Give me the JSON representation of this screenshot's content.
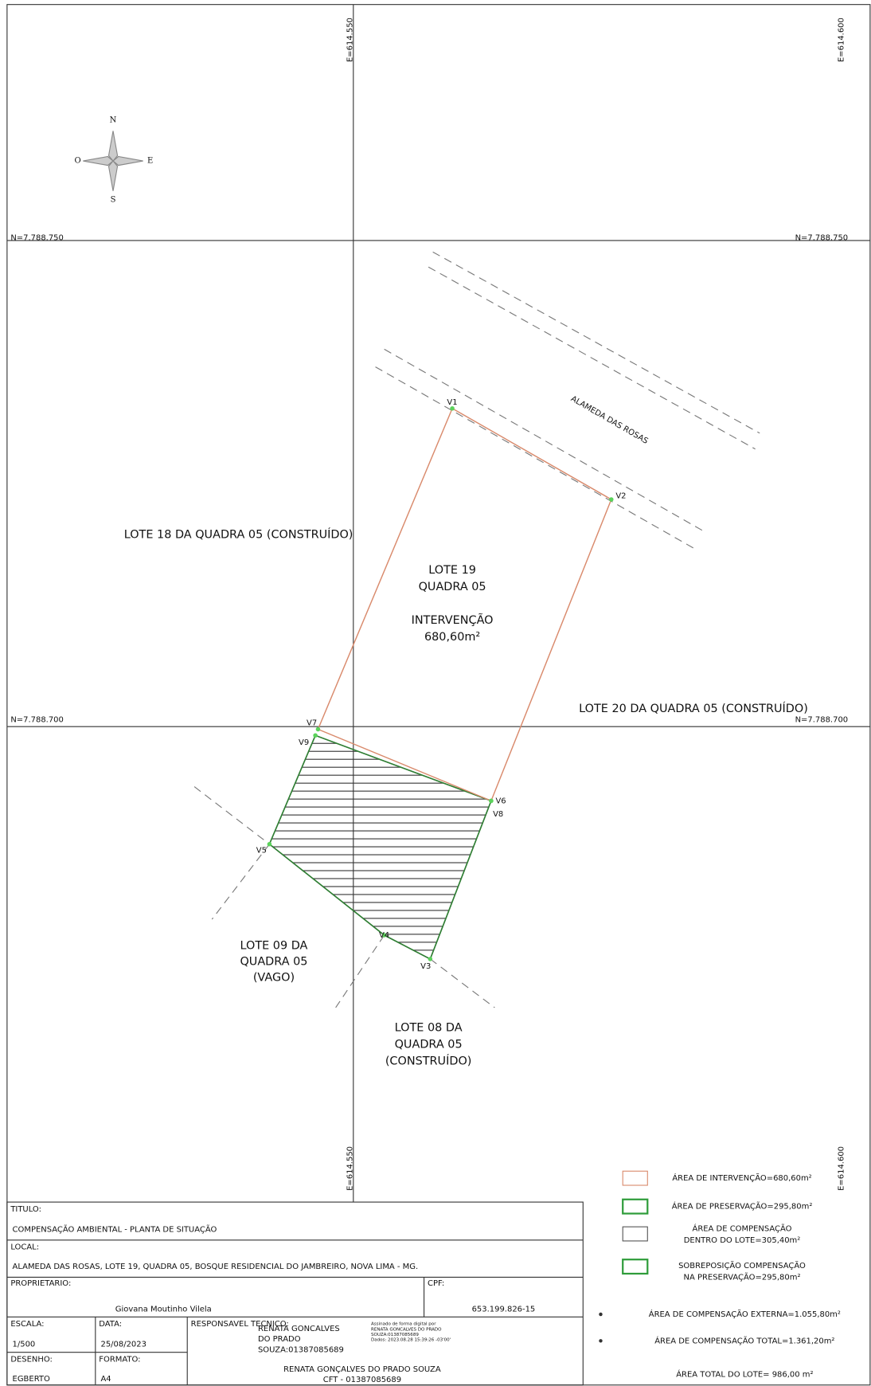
{
  "grid_labels": [
    "E=614.550",
    "E=614.600",
    "N=7.788.750",
    "N=7.788.750",
    "N=7.788.700",
    "N=7.788.700",
    "E=614.550",
    "E=614.600"
  ],
  "compass": [
    "N",
    "E",
    "S",
    "O"
  ],
  "vertices": [
    "V1",
    "V2",
    "V3",
    "V4",
    "V5",
    "V6",
    "V7",
    "V8",
    "V9"
  ],
  "street": "ALAMEDA DAS ROSAS",
  "lots": [
    {
      "lines": [
        "LOTE 18 DA QUADRA 05 (CONSTRUÍDO)"
      ]
    },
    {
      "lines": [
        "LOTE 19",
        "QUADRA 05",
        "INTERVENÇÃO",
        "680,60m²"
      ]
    },
    {
      "lines": [
        "LOTE 20 DA QUADRA 05 (CONSTRUÍDO)"
      ]
    },
    {
      "lines": [
        "LOTE 09 DA",
        "QUADRA 05",
        "(VAGO)"
      ]
    },
    {
      "lines": [
        "LOTE 08 DA",
        "QUADRA 05",
        "(CONSTRUÍDO)"
      ]
    }
  ],
  "legend": [
    {
      "lines": [
        "ÁREA DE INTERVENÇÃO=680,60m²"
      ]
    },
    {
      "lines": [
        "ÁREA DE PRESERVAÇÃO=295,80m²"
      ]
    },
    {
      "lines": [
        "ÁREA DE COMPENSAÇÃO",
        "DENTRO DO LOTE=305,40m²"
      ]
    },
    {
      "lines": [
        "SOBREPOSIÇÃO COMPENSAÇÃO",
        "NA PRESERVAÇÃO=295,80m²"
      ]
    }
  ],
  "notes": [
    "ÁREA DE COMPENSAÇÃO EXTERNA=1.055,80m²",
    "ÁREA DE COMPENSAÇÃO TOTAL=1.361,20m²",
    "ÁREA TOTAL DO LOTE= 986,00 m²"
  ],
  "title_block": {
    "titulo_label": "TITULO:",
    "titulo": "COMPENSAÇÃO AMBIENTAL - PLANTA DE SITUAÇÃO",
    "local_label": "LOCAL:",
    "local": "ALAMEDA DAS ROSAS, LOTE 19, QUADRA 05, BOSQUE RESIDENCIAL DO JAMBREIRO, NOVA LIMA - MG.",
    "proprietario_label": "PROPRIETARIO:",
    "proprietario": "Giovana Moutinho Vilela",
    "cpf_label": "CPF:",
    "cpf": "653.199.826-15",
    "escala_label": "ESCALA:",
    "escala": "1/500",
    "data_label": "DATA:",
    "data": "25/08/2023",
    "desenho_label": "DESENHO:",
    "desenho": "EGBERTO",
    "formato_label": "FORMATO:",
    "formato": "A4",
    "resp_label": "RESPONSAVEL TECNICO:",
    "signature": [
      "RENATA GONCALVES",
      "DO PRADO",
      "SOUZA:01387085689"
    ],
    "signature_note": [
      "Assinado de forma digital por",
      "RENATA GONCALVES DO PRADO",
      "SOUZA:01387085689",
      "Dados: 2023.08.28 15:39:26 -03'00'"
    ],
    "resp": "RENATA GONÇALVES DO PRADO SOUZA",
    "cft": "CFT - 01387085689"
  }
}
